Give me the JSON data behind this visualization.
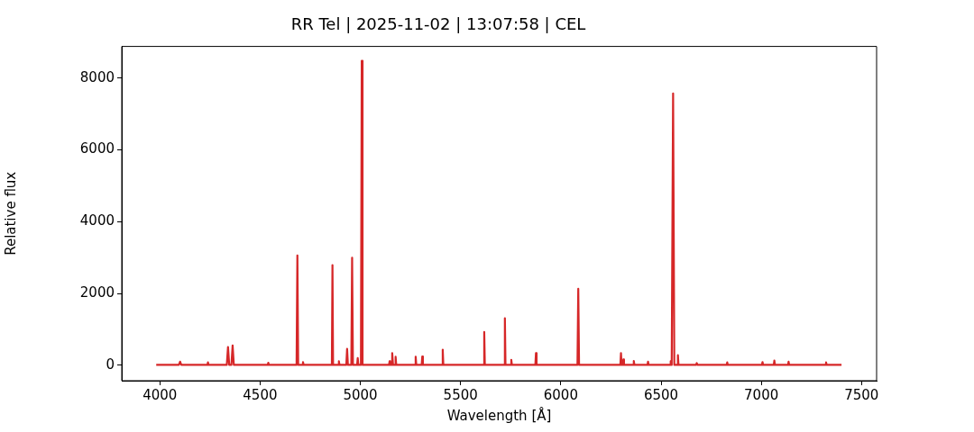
{
  "chart_data": {
    "type": "line",
    "title": "RR Tel | 2025-11-02 | 13:07:58 | CEL",
    "xlabel": "Wavelength [Å]",
    "ylabel": "Relative flux",
    "xlim": [
      3810,
      7575
    ],
    "xticks": [
      4000,
      4500,
      5000,
      5500,
      6000,
      6500,
      7000,
      7500
    ],
    "ylim": [
      -430,
      8880
    ],
    "yticks": [
      0,
      2000,
      4000,
      6000,
      8000
    ],
    "grid": false,
    "legend": false,
    "marker": "none",
    "line_style": "solid",
    "series": [
      {
        "color": "#d62728",
        "x": [
          3982,
          4095,
          4101,
          4107,
          4237,
          4240,
          4243,
          4334,
          4340,
          4346,
          4357,
          4363,
          4369,
          4538,
          4541,
          4544,
          4682,
          4686,
          4690,
          4711,
          4714,
          4717,
          4858,
          4861,
          4864,
          4890,
          4893,
          4896,
          4930,
          4934,
          4938,
          4955,
          4959,
          4963,
          4984,
          4987,
          4990,
          5003,
          5007,
          5011,
          5143,
          5146,
          5149,
          5155,
          5159,
          5163,
          5173,
          5176,
          5179,
          5273,
          5276,
          5279,
          5306,
          5309,
          5312,
          5408,
          5411,
          5414,
          5615,
          5618,
          5621,
          5718,
          5721,
          5724,
          5750,
          5753,
          5756,
          5873,
          5876,
          5879,
          6083,
          6087,
          6091,
          6297,
          6300,
          6303,
          6309,
          6312,
          6315,
          6361,
          6364,
          6367,
          6432,
          6435,
          6438,
          6545,
          6548,
          6553,
          6560,
          6566,
          6581,
          6584,
          6587,
          6675,
          6678,
          6681,
          6827,
          6830,
          6833,
          7003,
          7006,
          7009,
          7062,
          7065,
          7068,
          7133,
          7136,
          7139,
          7320,
          7323,
          7326,
          7400
        ],
        "values": [
          10,
          10,
          100,
          10,
          10,
          80,
          10,
          10,
          510,
          10,
          10,
          550,
          10,
          10,
          70,
          10,
          10,
          3060,
          10,
          10,
          90,
          10,
          10,
          2790,
          10,
          10,
          110,
          10,
          10,
          460,
          10,
          10,
          2995,
          10,
          10,
          200,
          10,
          10,
          8480,
          10,
          10,
          110,
          10,
          10,
          340,
          10,
          10,
          235,
          10,
          10,
          240,
          10,
          10,
          245,
          10,
          10,
          435,
          10,
          10,
          925,
          10,
          10,
          1310,
          10,
          10,
          150,
          10,
          10,
          340,
          10,
          10,
          2130,
          10,
          10,
          340,
          10,
          10,
          160,
          10,
          10,
          120,
          10,
          10,
          100,
          10,
          10,
          110,
          10,
          7570,
          10,
          10,
          280,
          10,
          10,
          60,
          10,
          10,
          80,
          10,
          10,
          90,
          10,
          10,
          130,
          10,
          10,
          100,
          10,
          10,
          80,
          10,
          10
        ]
      }
    ]
  }
}
